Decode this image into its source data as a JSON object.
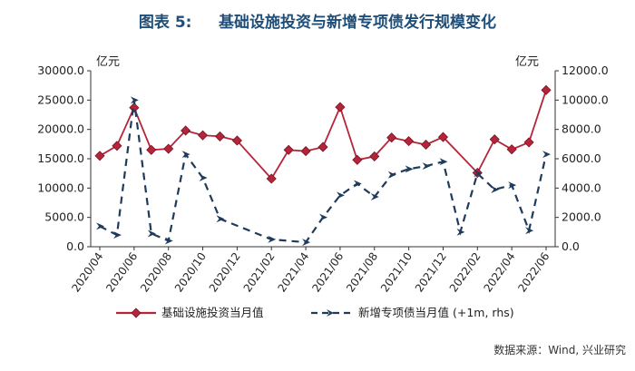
{
  "chart_data": {
    "type": "line",
    "title": "图表 5:     基础设施投资与新增专项债发行规模变化",
    "left_unit": "亿元",
    "right_unit": "亿元",
    "left_ylim": [
      0,
      30000
    ],
    "right_ylim": [
      0,
      12000
    ],
    "left_ticks": [
      "0.0",
      "5000.0",
      "10000.0",
      "15000.0",
      "20000.0",
      "25000.0",
      "30000.0"
    ],
    "right_ticks": [
      "0.0",
      "2000.0",
      "4000.0",
      "6000.0",
      "8000.0",
      "10000.0",
      "12000.0"
    ],
    "x_tick_labels": [
      "2020/04",
      "2020/06",
      "2020/08",
      "2020/10",
      "2020/12",
      "2021/02",
      "2021/04",
      "2021/06",
      "2021/08",
      "2021/10",
      "2021/12",
      "2022/02",
      "2022/04",
      "2022/06"
    ],
    "months": [
      "2020/04",
      "2020/05",
      "2020/06",
      "2020/07",
      "2020/08",
      "2020/09",
      "2020/10",
      "2020/11",
      "2020/12",
      "2021/01",
      "2021/02",
      "2021/03",
      "2021/04",
      "2021/05",
      "2021/06",
      "2021/07",
      "2021/08",
      "2021/09",
      "2021/10",
      "2021/11",
      "2021/12",
      "2022/01",
      "2022/02",
      "2022/03",
      "2022/04",
      "2022/05",
      "2022/06"
    ],
    "series": [
      {
        "name": "基础设施投资当月值",
        "axis": "left",
        "color": "#b5253a",
        "style": "solid",
        "marker": "diamond",
        "values": [
          15500,
          17200,
          23700,
          16500,
          16700,
          19800,
          19000,
          18800,
          18100,
          null,
          11600,
          16500,
          16300,
          17000,
          23800,
          14800,
          15400,
          18600,
          18000,
          17400,
          18700,
          null,
          12600,
          18300,
          16600,
          17800,
          26700
        ]
      },
      {
        "name": "新增专项债当月值（+1m, rhs）",
        "legend_label": "新增专项债当月值 (+1m, rhs)",
        "axis": "right",
        "color": "#1f3b5c",
        "style": "dashed",
        "marker": "arrow",
        "values": [
          1400,
          800,
          10000,
          900,
          400,
          6300,
          4700,
          1900,
          null,
          null,
          500,
          null,
          300,
          2000,
          3500,
          4300,
          3400,
          4900,
          5300,
          5500,
          5800,
          1000,
          5000,
          3900,
          4200,
          1100,
          6300
        ]
      }
    ],
    "legend_position": "bottom",
    "grid": false
  },
  "source_note": "数据来源：Wind, 兴业研究"
}
